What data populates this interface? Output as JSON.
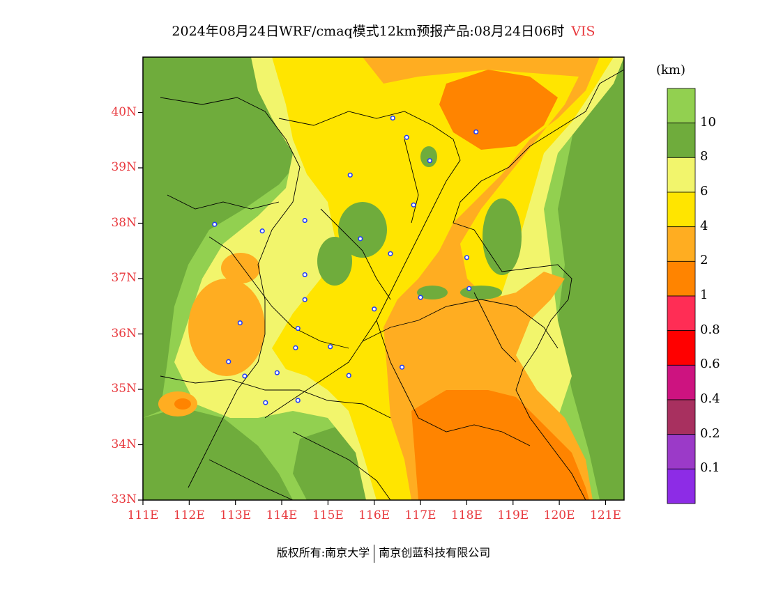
{
  "title": {
    "text": "2024年08月24日WRF/cmaq模式12km预报产品:08月24日06时",
    "variable": "VIS"
  },
  "axes": {
    "lat_labels": [
      "40N",
      "39N",
      "38N",
      "37N",
      "36N",
      "35N",
      "34N",
      "33N"
    ],
    "lat_values": [
      40,
      39,
      38,
      37,
      36,
      35,
      34,
      33
    ],
    "lon_labels": [
      "111E",
      "112E",
      "113E",
      "114E",
      "115E",
      "116E",
      "117E",
      "118E",
      "119E",
      "120E",
      "121E"
    ],
    "lon_values": [
      111,
      112,
      113,
      114,
      115,
      116,
      117,
      118,
      119,
      120,
      121
    ],
    "lat_range": [
      33,
      41
    ],
    "lon_range": [
      111,
      121.4
    ]
  },
  "colorbar": {
    "unit": "(km)",
    "labels": [
      "10",
      "8",
      "6",
      "4",
      "2",
      "1",
      "0.8",
      "0.6",
      "0.4",
      "0.2",
      "0.1"
    ],
    "colors": [
      "#92d050",
      "#6fac3c",
      "#f2f56c",
      "#ffe500",
      "#ffad21",
      "#ff8400",
      "#ff2d55",
      "#ff0000",
      "#cd1380",
      "#a8305f",
      "#9b3ac8",
      "#8d2ce6"
    ]
  },
  "colors": {
    "gt10": "#92d050",
    "8to10": "#6fac3c",
    "6to8": "#f2f56c",
    "4to6": "#ffe500",
    "2to4": "#ffad21",
    "1to2": "#ff8400",
    "label_red": "#e8383d",
    "station_blue": "#1f3cff"
  },
  "stations": [
    {
      "lon": 116.4,
      "lat": 39.9
    },
    {
      "lon": 116.7,
      "lat": 39.55
    },
    {
      "lon": 118.2,
      "lat": 39.65
    },
    {
      "lon": 117.2,
      "lat": 39.13
    },
    {
      "lon": 115.48,
      "lat": 38.87
    },
    {
      "lon": 116.85,
      "lat": 38.33
    },
    {
      "lon": 112.55,
      "lat": 37.98
    },
    {
      "lon": 113.58,
      "lat": 37.86
    },
    {
      "lon": 114.5,
      "lat": 38.05
    },
    {
      "lon": 115.7,
      "lat": 37.72
    },
    {
      "lon": 116.35,
      "lat": 37.45
    },
    {
      "lon": 118.0,
      "lat": 37.38
    },
    {
      "lon": 114.5,
      "lat": 37.07
    },
    {
      "lon": 114.5,
      "lat": 36.62
    },
    {
      "lon": 116.0,
      "lat": 36.45
    },
    {
      "lon": 117.0,
      "lat": 36.66
    },
    {
      "lon": 118.05,
      "lat": 36.82
    },
    {
      "lon": 113.1,
      "lat": 36.2
    },
    {
      "lon": 114.35,
      "lat": 36.1
    },
    {
      "lon": 114.3,
      "lat": 35.75
    },
    {
      "lon": 115.05,
      "lat": 35.77
    },
    {
      "lon": 112.85,
      "lat": 35.5
    },
    {
      "lon": 113.2,
      "lat": 35.24
    },
    {
      "lon": 113.9,
      "lat": 35.3
    },
    {
      "lon": 115.45,
      "lat": 35.25
    },
    {
      "lon": 116.6,
      "lat": 35.4
    },
    {
      "lon": 114.35,
      "lat": 34.8
    },
    {
      "lon": 113.65,
      "lat": 34.76
    }
  ],
  "footer": {
    "left": "版权所有:南京大学",
    "right": "南京创蓝科技有限公司"
  }
}
